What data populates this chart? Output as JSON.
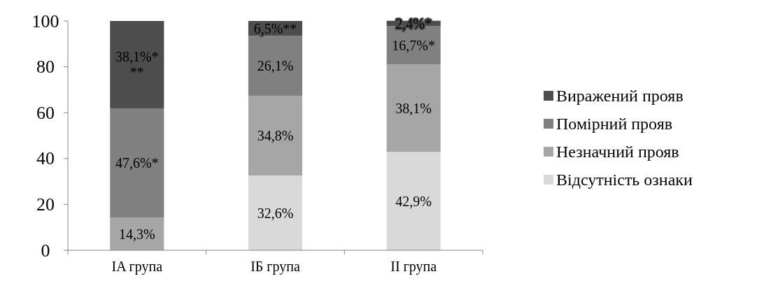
{
  "chart_data": {
    "type": "bar",
    "stacked": true,
    "categories": [
      "IA група",
      "IБ група",
      "II група"
    ],
    "ylim": [
      0,
      100
    ],
    "yticks": [
      0,
      20,
      40,
      60,
      80,
      100
    ],
    "grid": false,
    "legend": "right",
    "series": [
      {
        "name": "Відсутність ознаки",
        "color": "#d9d9d9",
        "values": [
          0,
          32.6,
          42.9
        ],
        "value_labels": [
          null,
          "32,6%",
          "42,9%"
        ]
      },
      {
        "name": "Незначний прояв",
        "color": "#a6a6a6",
        "values": [
          14.3,
          34.8,
          38.1
        ],
        "value_labels": [
          "14,3%",
          "34,8%",
          "38,1%"
        ]
      },
      {
        "name": "Помірний прояв",
        "color": "#808080",
        "values": [
          47.6,
          26.1,
          16.7
        ],
        "value_labels": [
          "47,6%*",
          "26,1%",
          "16,7%*"
        ]
      },
      {
        "name": "Виражений прояв",
        "color": "#4d4d4d",
        "values": [
          38.1,
          6.5,
          2.4
        ],
        "value_labels": [
          "38,1%***",
          "6,5%**",
          "2,4%*"
        ]
      }
    ]
  }
}
